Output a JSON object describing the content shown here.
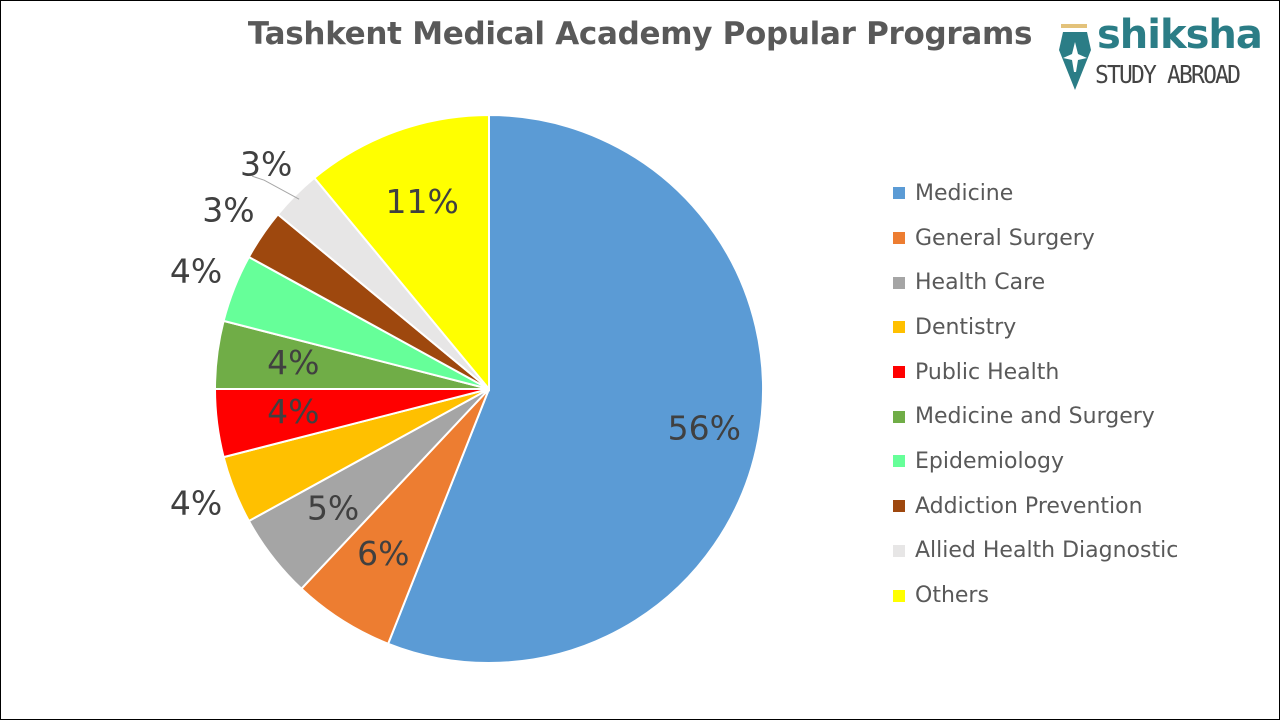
{
  "logo": {
    "word": "shiksha",
    "sub": "STUDY ABROAD"
  },
  "chart_data": {
    "type": "pie",
    "title": "Tashkent Medical Academy Popular Programs",
    "start_angle": "12 o'clock, clockwise",
    "legend_position": "right",
    "slices": [
      {
        "label": "Medicine",
        "value": 56,
        "display": "56%",
        "color": "#5b9bd5",
        "label_position": "inside"
      },
      {
        "label": "General Surgery",
        "value": 6,
        "display": "6%",
        "color": "#ed7d31",
        "label_position": "inside"
      },
      {
        "label": "Health Care",
        "value": 5,
        "display": "5%",
        "color": "#a5a5a5",
        "label_position": "inside"
      },
      {
        "label": "Dentistry",
        "value": 4,
        "display": "4%",
        "color": "#ffc000",
        "label_position": "outside"
      },
      {
        "label": "Public Health",
        "value": 4,
        "display": "4%",
        "color": "#ff0000",
        "label_position": "inside"
      },
      {
        "label": "Medicine and Surgery",
        "value": 4,
        "display": "4%",
        "color": "#70ad47",
        "label_position": "inside"
      },
      {
        "label": "Epidemiology",
        "value": 4,
        "display": "4%",
        "color": "#66ff99",
        "label_position": "outside"
      },
      {
        "label": "Addiction Prevention",
        "value": 3,
        "display": "3%",
        "color": "#9e480e",
        "label_position": "outside"
      },
      {
        "label": "Allied Health Diagnostic",
        "value": 3,
        "display": "3%",
        "color": "#e7e6e6",
        "label_position": "outside"
      },
      {
        "label": "Others",
        "value": 11,
        "display": "11%",
        "color": "#ffff00",
        "label_position": "inside"
      }
    ]
  }
}
